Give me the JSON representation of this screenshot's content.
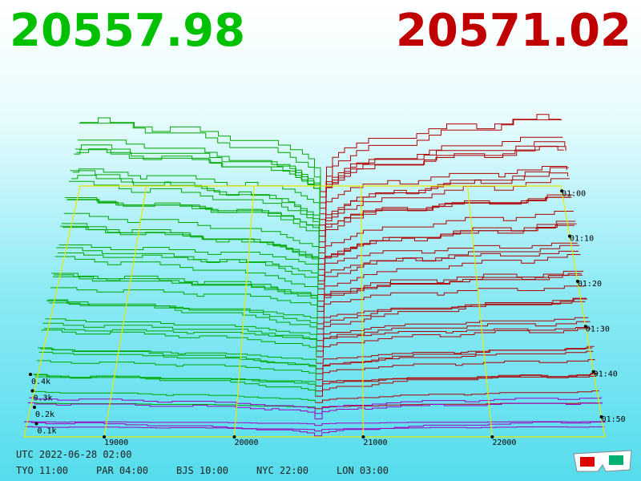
{
  "header": {
    "bid_price": "20557.98",
    "ask_price": "20571.02"
  },
  "price_axis": [
    "19000",
    "20000",
    "21000",
    "22000"
  ],
  "volume_axis": [
    "0.4k",
    "0.3k",
    "0.2k",
    "0.1k"
  ],
  "time_axis": [
    "01:00",
    "01:10",
    "01:20",
    "01:30",
    "01:40",
    "01:50"
  ],
  "footer": {
    "utc": "UTC 2022-06-28 02:00",
    "clocks": [
      "TYO 11:00",
      "PAR 04:00",
      "BJS 10:00",
      "NYC 22:00",
      "LON 03:00"
    ]
  }
}
